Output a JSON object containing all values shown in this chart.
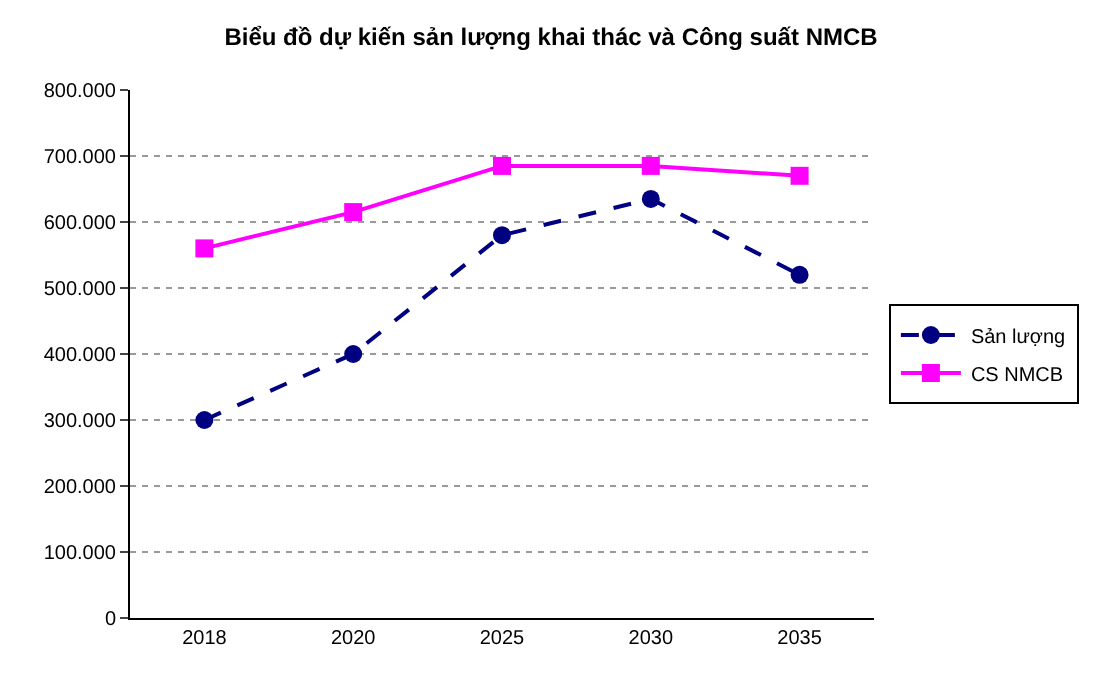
{
  "chart_data": {
    "type": "line",
    "title": "Biểu đồ dự kiến sản lượng khai thác và Công suất NMCB",
    "categories": [
      "2018",
      "2020",
      "2025",
      "2030",
      "2035"
    ],
    "series": [
      {
        "name": "Sản lượng",
        "color": "#000080",
        "values": [
          300000,
          400000,
          580000,
          635000,
          520000
        ],
        "marker": "circle",
        "line_style": "dashed"
      },
      {
        "name": "CS NMCB",
        "color": "#ff00ff",
        "values": [
          560000,
          615000,
          685000,
          685000,
          670000
        ],
        "marker": "square",
        "line_style": "solid"
      }
    ],
    "ylim": [
      0,
      800000
    ],
    "yticks": [
      {
        "value": 0,
        "label": "0"
      },
      {
        "value": 100000,
        "label": "100.000"
      },
      {
        "value": 200000,
        "label": "200.000"
      },
      {
        "value": 300000,
        "label": "300.000"
      },
      {
        "value": 400000,
        "label": "400.000"
      },
      {
        "value": 500000,
        "label": "500.000"
      },
      {
        "value": 600000,
        "label": "600.000"
      },
      {
        "value": 700000,
        "label": "700.000"
      },
      {
        "value": 800000,
        "label": "800.000"
      }
    ],
    "grid": "y",
    "legend": "right"
  }
}
